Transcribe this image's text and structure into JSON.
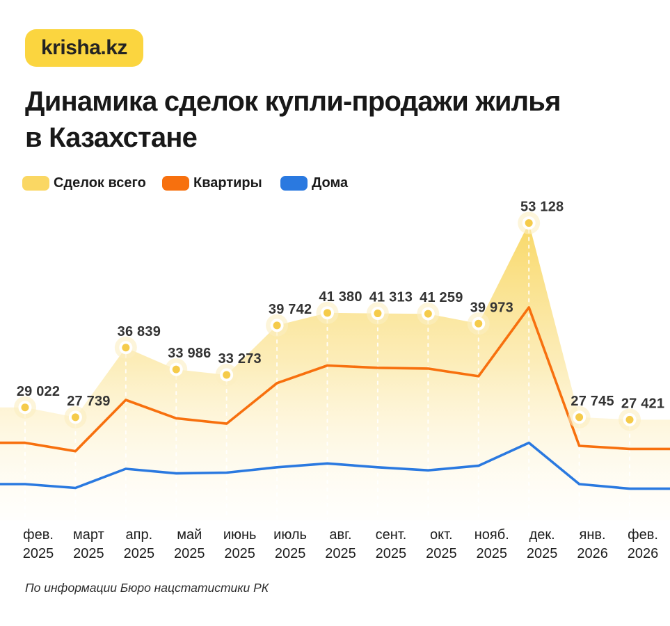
{
  "brand": {
    "logo_text": "krisha.kz",
    "logo_bg": "#FBD53F"
  },
  "title": {
    "line1": "Динамика сделок купли-продажи жилья",
    "line2": "в Казахстане"
  },
  "legend": {
    "items": [
      {
        "label": "Сделок всего",
        "color": "#FAD763"
      },
      {
        "label": "Квартиры",
        "color": "#F7700E"
      },
      {
        "label": "Дома",
        "color": "#2A79E0"
      }
    ]
  },
  "footer": {
    "source_note": "По информации Бюро нацстатистики РК"
  },
  "chart_data": {
    "type": "area",
    "title": "Динамика сделок купли-продажи жилья в Казахстане",
    "xlabel": "",
    "ylabel": "",
    "ylim": [
      18000,
      55000
    ],
    "grid": false,
    "legend_position": "top",
    "guide_line_style": "white-dashed",
    "point_label_color": "#333333",
    "area_gradient_top": "rgba(248,213,90,0.95)",
    "area_gradient_mid": "rgba(251,231,162,0.75)",
    "area_gradient_bottom": "rgba(255,250,235,0.15)",
    "categories": [
      "фев. 2025",
      "март 2025",
      "апр. 2025",
      "май 2025",
      "июнь 2025",
      "июль 2025",
      "авг. 2025",
      "сент. 2025",
      "окт. 2025",
      "нояб. 2025",
      "дек. 2025",
      "янв. 2026",
      "фев. 2026"
    ],
    "categories_two_line": [
      {
        "month": "фев.",
        "year": "2025"
      },
      {
        "month": "март",
        "year": "2025"
      },
      {
        "month": "апр.",
        "year": "2025"
      },
      {
        "month": "май",
        "year": "2025"
      },
      {
        "month": "июнь",
        "year": "2025"
      },
      {
        "month": "июль",
        "year": "2025"
      },
      {
        "month": "авг.",
        "year": "2025"
      },
      {
        "month": "сент.",
        "year": "2025"
      },
      {
        "month": "окт.",
        "year": "2025"
      },
      {
        "month": "нояб.",
        "year": "2025"
      },
      {
        "month": "дек.",
        "year": "2025"
      },
      {
        "month": "янв.",
        "year": "2026"
      },
      {
        "month": "фев.",
        "year": "2026"
      }
    ],
    "series": [
      {
        "name": "Сделок всего",
        "type": "area",
        "color": "#FAD763",
        "marker_color": "#F5CB4A",
        "values": [
          29022,
          27739,
          36839,
          33986,
          33273,
          39742,
          41380,
          41313,
          41259,
          39973,
          53128,
          27745,
          27421
        ],
        "point_labels": [
          "29 022",
          "27 739",
          "36 839",
          "33 986",
          "33 273",
          "39 742",
          "41 380",
          "41 313",
          "41 259",
          "39 973",
          "53 128",
          "27 745",
          "27 421"
        ]
      },
      {
        "name": "Квартиры",
        "type": "line",
        "color": "#F7700E",
        "estimated_from_pixels": true,
        "values": [
          24400,
          23300,
          30000,
          27600,
          26900,
          32200,
          34500,
          34200,
          34100,
          33100,
          42100,
          24000,
          23600
        ]
      },
      {
        "name": "Дома",
        "type": "line",
        "color": "#2A79E0",
        "estimated_from_pixels": true,
        "values": [
          19000,
          18500,
          21000,
          20400,
          20500,
          21200,
          21700,
          21200,
          20800,
          21400,
          24400,
          19000,
          18400
        ]
      }
    ]
  }
}
